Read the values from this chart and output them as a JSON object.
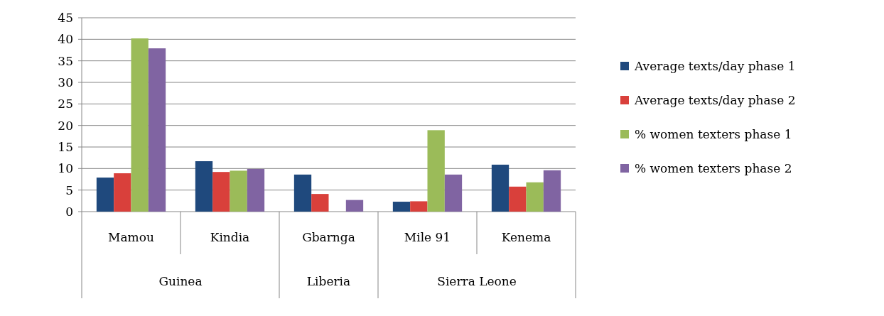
{
  "chart_data": {
    "type": "bar",
    "categories": [
      "Mamou",
      "Kindia",
      "Gbarnga",
      "Mile 91",
      "Kenema"
    ],
    "series": [
      {
        "name": "Average texts/day phase 1",
        "color": "#1f497d",
        "values": [
          7.9,
          11.7,
          8.6,
          2.3,
          10.9
        ]
      },
      {
        "name": "Average texts/day phase 2",
        "color": "#d9403b",
        "values": [
          8.9,
          9.2,
          4.1,
          2.4,
          5.8
        ]
      },
      {
        "name": "% women texters phase 1",
        "color": "#9bbb59",
        "values": [
          40.2,
          9.5,
          0,
          18.9,
          6.8
        ]
      },
      {
        "name": "% women texters phase 2",
        "color": "#8064a2",
        "values": [
          37.9,
          9.9,
          2.7,
          8.6,
          9.6
        ]
      }
    ],
    "annotations": [
      "Guinea",
      "Liberia",
      "Sierra Leone"
    ],
    "ylim": [
      0,
      45
    ],
    "yticks": [
      0,
      5,
      10,
      15,
      20,
      25,
      30,
      35,
      40,
      45
    ],
    "grid": "y",
    "legend": "right"
  }
}
